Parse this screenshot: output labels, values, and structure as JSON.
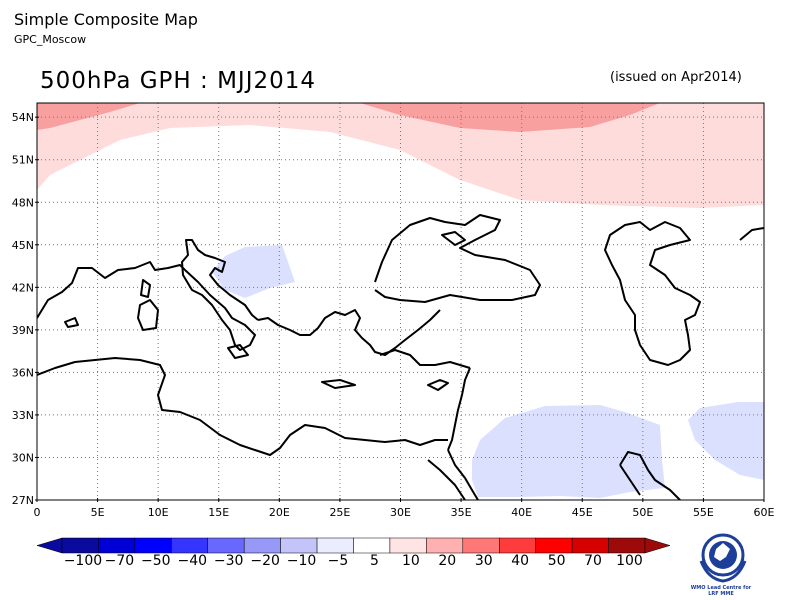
{
  "header": {
    "title": "Simple Composite Map",
    "subtitle": "GPC_Moscow",
    "map_title": "500hPa GPH : MJJ2014",
    "issued": "(issued on Apr2014)"
  },
  "map": {
    "lon_range": [
      0,
      60
    ],
    "lat_range": [
      27,
      55
    ],
    "lat_ticks": [
      "54N",
      "51N",
      "48N",
      "45N",
      "42N",
      "39N",
      "36N",
      "33N",
      "30N",
      "27N"
    ],
    "lon_ticks": [
      "0",
      "5E",
      "10E",
      "15E",
      "20E",
      "25E",
      "30E",
      "35E",
      "40E",
      "45E",
      "50E",
      "55E",
      "60E"
    ],
    "grid": "dotted",
    "anomaly_regions": [
      {
        "level": "5 to 10",
        "color": "#ffdcdc",
        "description": "northern belt"
      },
      {
        "level": "20 to 30",
        "color": "#f8a0a0",
        "description": "north-central maximum"
      },
      {
        "level": "-10 to -5",
        "color": "#dce0ff",
        "description": "Adriatic"
      },
      {
        "level": "-10 to -5",
        "color": "#dce0ff",
        "description": "Arabia"
      }
    ]
  },
  "colorbar": {
    "labels": [
      "−100",
      "−70",
      "−50",
      "−40",
      "−30",
      "−20",
      "−10",
      "−5",
      "5",
      "10",
      "20",
      "30",
      "40",
      "50",
      "70",
      "100"
    ],
    "colors": [
      "#0a0a9c",
      "#0000d6",
      "#0000ff",
      "#3535ff",
      "#6868ff",
      "#9898f8",
      "#c4c4f8",
      "#ececff",
      "#ffffff",
      "#ffe4e4",
      "#ffb0b0",
      "#ff7878",
      "#ff3c3c",
      "#ff0000",
      "#d60000",
      "#9c0a0a"
    ]
  },
  "logo": {
    "text_line1": "WMO Lead Centre for",
    "text_line2": "LRF MME"
  }
}
